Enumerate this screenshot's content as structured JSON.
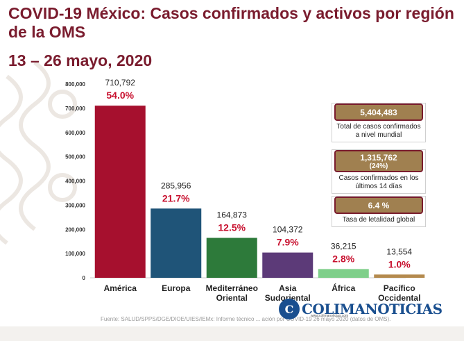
{
  "header": {
    "title": "COVID-19 México: Casos confirmados y activos por región de la OMS",
    "subtitle": "13 – 26 mayo, 2020"
  },
  "colors": {
    "title": "#7a1c2e",
    "pct": "#c8102e",
    "bars": [
      "#a6102e",
      "#1f5478",
      "#2d7a3a",
      "#5c3a78",
      "#7fcf8a",
      "#b48a4e"
    ],
    "pill": "#a08050"
  },
  "chart_data": {
    "type": "bar",
    "categories": [
      "América",
      "Europa",
      "Mediterráneo Oriental",
      "Asia Sudoriental",
      "África",
      "Pacífico Occidental"
    ],
    "values": [
      710792,
      285956,
      164873,
      104372,
      36215,
      13554
    ],
    "value_labels": [
      "710,792",
      "285,956",
      "164,873",
      "104,372",
      "36,215",
      "13,554"
    ],
    "percent_labels": [
      "54.0%",
      "21.7%",
      "12.5%",
      "7.9%",
      "2.8%",
      "1.0%"
    ],
    "yticks": [
      "0",
      "100,000",
      "200,000",
      "300,000",
      "400,000",
      "500,000",
      "600,000",
      "700,000",
      "800,000"
    ],
    "ylim": [
      0,
      800000
    ],
    "title": "",
    "xlabel": "",
    "ylabel": "",
    "grid": false,
    "legend": "none"
  },
  "stats": [
    {
      "value": "5,404,483",
      "sub": "",
      "label": "Total de casos confirmados a nivel mundial"
    },
    {
      "value": "1,315,762",
      "sub": "(24%)",
      "label": "Casos confirmados en los últimos 14 días"
    },
    {
      "value": "6.4 %",
      "sub": "",
      "label": "Tasa de letalidad global"
    }
  ],
  "footer": {
    "source": "Fuente: SALUD/SPPS/DGE/DIOE/UIES/IEMx: Informe técnico ... ación por COVID-19 26 mayo 2020 (datos de OMS)."
  },
  "logo": {
    "mark": "C",
    "name": "COLIMANOTICIAS",
    "tagline": "www.colimanoticias.com"
  }
}
